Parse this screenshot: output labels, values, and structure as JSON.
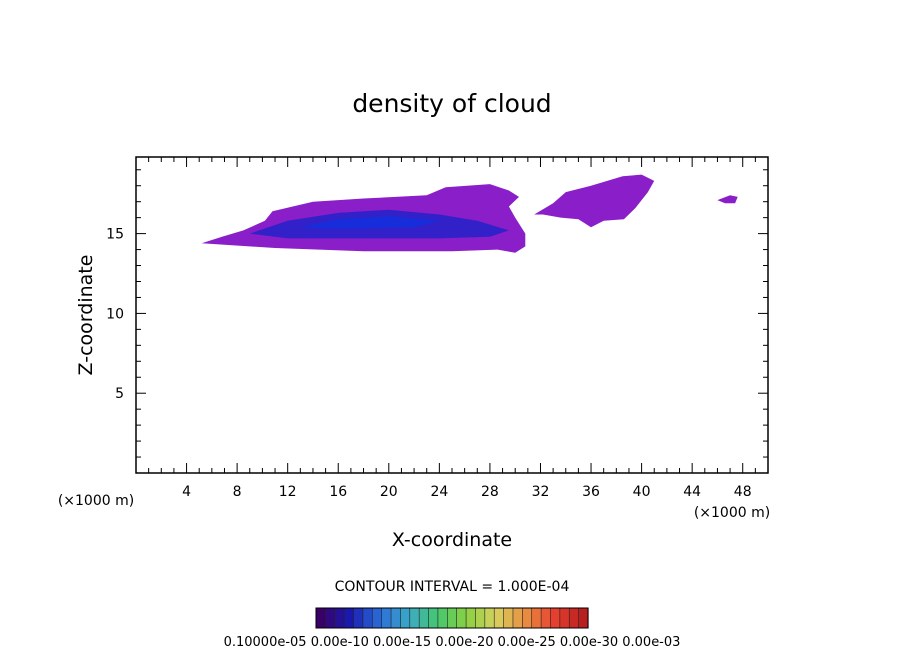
{
  "chart_data": {
    "type": "contour",
    "title": "density of cloud",
    "xlabel": "X-coordinate",
    "ylabel": "Z-coordinate",
    "x_unit": "(×1000 m)",
    "y_unit": "(×1000 m)",
    "xlim": [
      0,
      50
    ],
    "ylim": [
      0,
      19.8
    ],
    "x_ticks": [
      4,
      8,
      12,
      16,
      20,
      24,
      28,
      32,
      36,
      40,
      44,
      48
    ],
    "y_ticks": [
      5,
      10,
      15
    ],
    "contour_interval_text": "CONTOUR INTERVAL = 1.000E-04",
    "colorbar": {
      "min": 0.0001,
      "max": 0.003,
      "label_text": "0.10000e-05 0.00e-10 0.00e-15 0.00e-20 0.00e-25 0.00e-30 0.00e-03",
      "colors": [
        "#3a0068",
        "#1a1ab0",
        "#2a6ad8",
        "#3aa8c8",
        "#46c870",
        "#8ad040",
        "#d8d060",
        "#e89040",
        "#e84030",
        "#b82020"
      ]
    },
    "regions": [
      {
        "name": "main cloud",
        "outline": [
          [
            5.2,
            14.4
          ],
          [
            6.8,
            14.8
          ],
          [
            8.5,
            15.2
          ],
          [
            10.2,
            15.8
          ],
          [
            10.8,
            16.4
          ],
          [
            14,
            17.0
          ],
          [
            18,
            17.2
          ],
          [
            23,
            17.4
          ],
          [
            24.5,
            17.9
          ],
          [
            28,
            18.1
          ],
          [
            29.5,
            17.7
          ],
          [
            30.3,
            17.3
          ],
          [
            29.5,
            16.7
          ],
          [
            30.0,
            16.0
          ],
          [
            30.8,
            15.0
          ],
          [
            30.8,
            14.2
          ],
          [
            30.0,
            13.8
          ],
          [
            28.6,
            14.0
          ],
          [
            25,
            13.9
          ],
          [
            18,
            13.9
          ],
          [
            11,
            14.1
          ],
          [
            7,
            14.3
          ],
          [
            5.2,
            14.4
          ]
        ],
        "level": 0.0003
      },
      {
        "name": "core",
        "outline": [
          [
            9,
            15.0
          ],
          [
            12,
            15.8
          ],
          [
            16,
            16.3
          ],
          [
            20,
            16.5
          ],
          [
            24,
            16.2
          ],
          [
            27,
            15.8
          ],
          [
            29.5,
            15.2
          ],
          [
            28,
            14.8
          ],
          [
            24,
            14.7
          ],
          [
            18,
            14.7
          ],
          [
            12,
            14.7
          ],
          [
            9,
            15.0
          ]
        ],
        "level": 0.0012
      },
      {
        "name": "inner core",
        "outline": [
          [
            13,
            15.4
          ],
          [
            16,
            15.9
          ],
          [
            20,
            16.1
          ],
          [
            24,
            15.8
          ],
          [
            22,
            15.4
          ],
          [
            16,
            15.3
          ],
          [
            13,
            15.4
          ]
        ],
        "level": 0.002
      },
      {
        "name": "secondary cloud",
        "outline": [
          [
            31.5,
            16.2
          ],
          [
            33,
            16.9
          ],
          [
            34,
            17.6
          ],
          [
            36,
            18.0
          ],
          [
            38.5,
            18.6
          ],
          [
            40,
            18.7
          ],
          [
            41,
            18.3
          ],
          [
            40.5,
            17.6
          ],
          [
            39.5,
            16.6
          ],
          [
            38.6,
            15.9
          ],
          [
            37,
            15.8
          ],
          [
            36,
            15.4
          ],
          [
            35,
            15.9
          ],
          [
            33.6,
            16.0
          ],
          [
            32.2,
            16.2
          ],
          [
            31.5,
            16.2
          ]
        ],
        "level": 0.0002
      },
      {
        "name": "small patch",
        "outline": [
          [
            46,
            17.1
          ],
          [
            47,
            17.4
          ],
          [
            47.6,
            17.3
          ],
          [
            47.4,
            16.9
          ],
          [
            46.6,
            16.9
          ],
          [
            46,
            17.1
          ]
        ],
        "level": 0.0001
      }
    ]
  },
  "colors": {
    "outer": "#8a1ec8",
    "mid": "#5a16b8",
    "core": "#2222c8",
    "inner": "#1030e0"
  }
}
